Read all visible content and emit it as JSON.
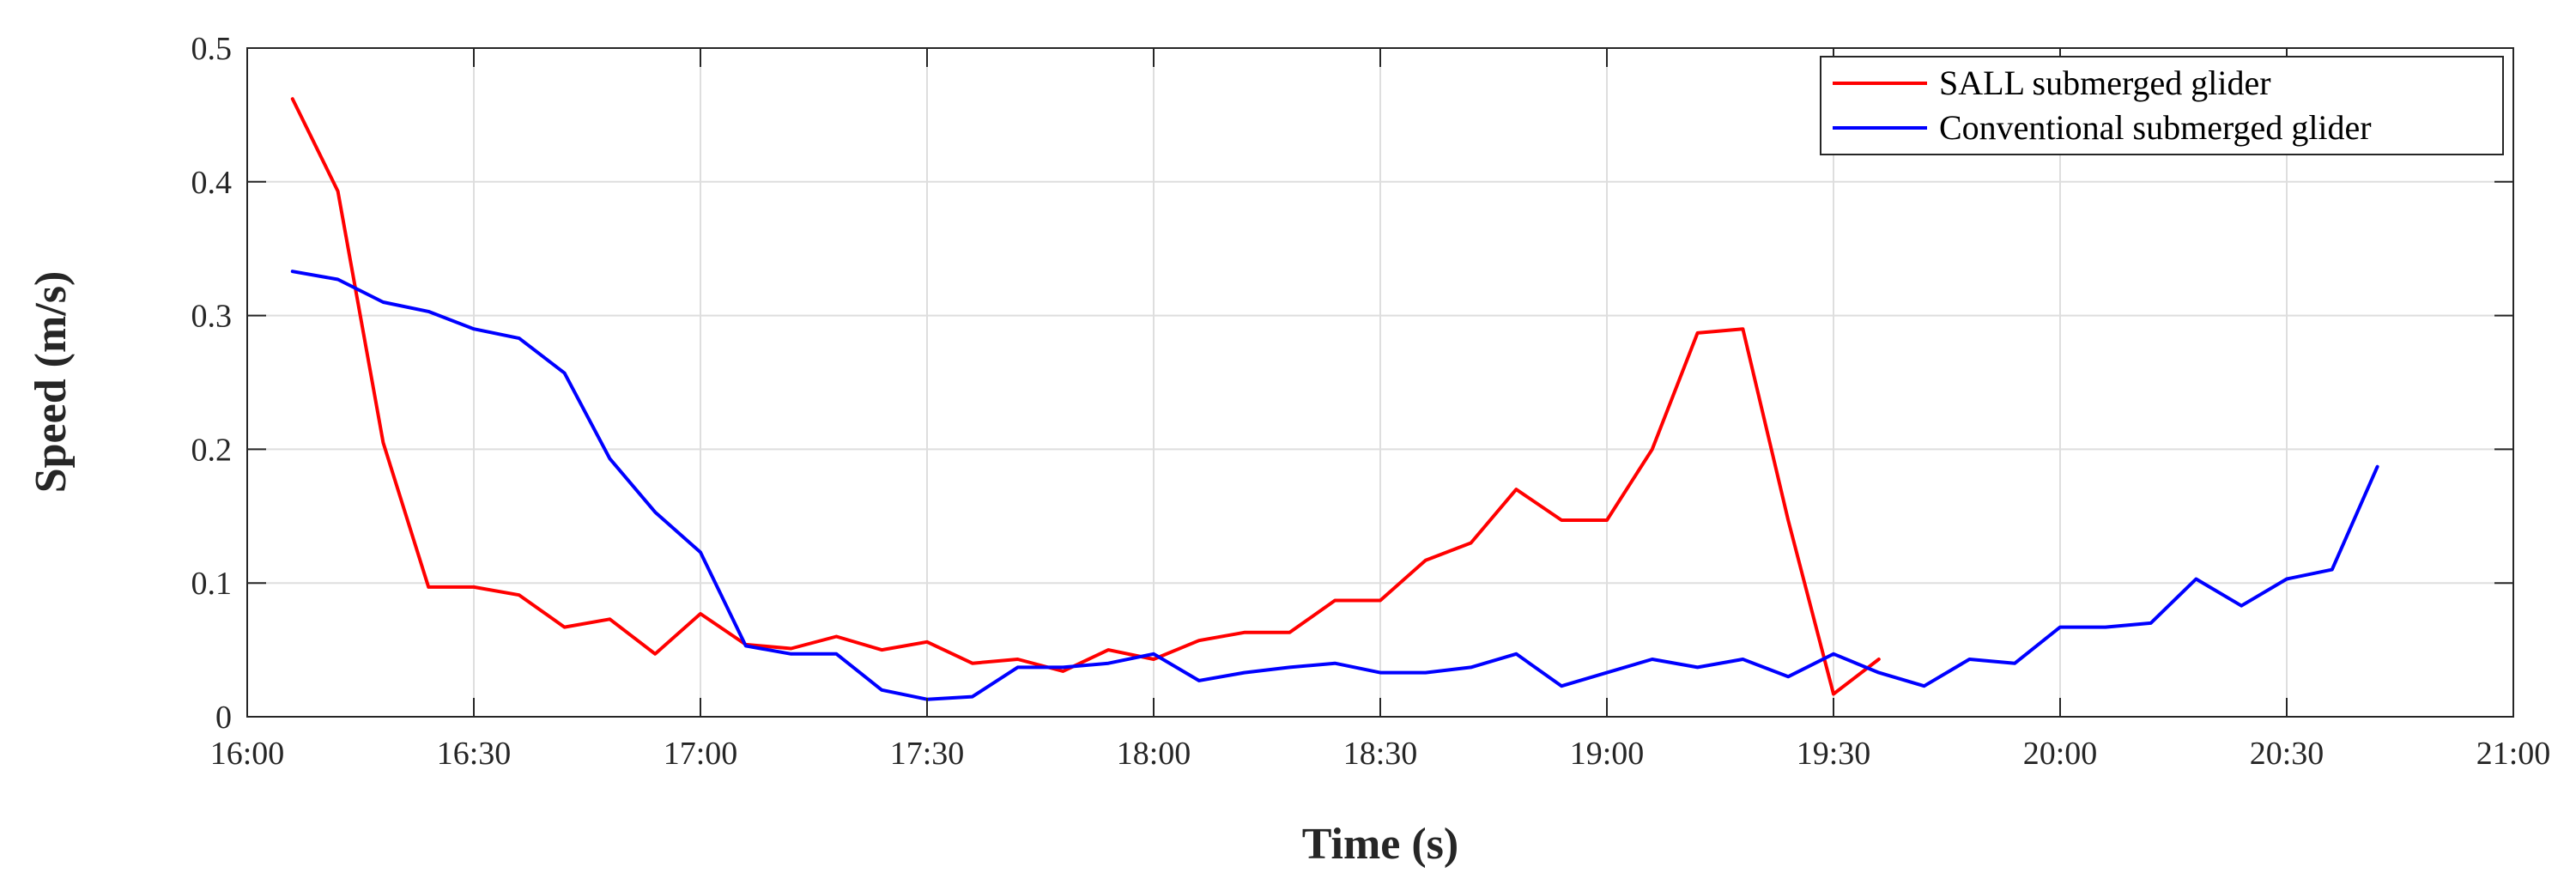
{
  "chart_data": {
    "type": "line",
    "title": "",
    "xlabel": "Time (s)",
    "ylabel": "Speed (m/s)",
    "xlim": [
      "16:00",
      "21:00"
    ],
    "ylim": [
      0,
      0.5
    ],
    "x_ticks": [
      "16:00",
      "16:30",
      "17:00",
      "17:30",
      "18:00",
      "18:30",
      "19:00",
      "19:30",
      "20:00",
      "20:30",
      "21:00"
    ],
    "y_ticks": [
      "0",
      "0.1",
      "0.2",
      "0.3",
      "0.4",
      "0.5"
    ],
    "grid": true,
    "legend_position": "top-right",
    "series": [
      {
        "name": "SALL submerged glider",
        "color": "#ff0000",
        "points": [
          [
            "16:06",
            0.462
          ],
          [
            "16:12",
            0.393
          ],
          [
            "16:18",
            0.205
          ],
          [
            "16:24",
            0.097
          ],
          [
            "16:30",
            0.097
          ],
          [
            "16:36",
            0.091
          ],
          [
            "16:42",
            0.067
          ],
          [
            "16:48",
            0.073
          ],
          [
            "16:54",
            0.047
          ],
          [
            "17:00",
            0.077
          ],
          [
            "17:06",
            0.054
          ],
          [
            "17:12",
            0.051
          ],
          [
            "17:18",
            0.06
          ],
          [
            "17:24",
            0.05
          ],
          [
            "17:30",
            0.056
          ],
          [
            "17:36",
            0.04
          ],
          [
            "17:42",
            0.043
          ],
          [
            "17:48",
            0.034
          ],
          [
            "17:54",
            0.05
          ],
          [
            "18:00",
            0.043
          ],
          [
            "18:06",
            0.057
          ],
          [
            "18:12",
            0.063
          ],
          [
            "18:18",
            0.063
          ],
          [
            "18:24",
            0.087
          ],
          [
            "18:30",
            0.087
          ],
          [
            "18:36",
            0.117
          ],
          [
            "18:42",
            0.13
          ],
          [
            "18:48",
            0.17
          ],
          [
            "18:54",
            0.147
          ],
          [
            "19:00",
            0.147
          ],
          [
            "19:06",
            0.2
          ],
          [
            "19:12",
            0.287
          ],
          [
            "19:18",
            0.29
          ],
          [
            "19:24",
            0.147
          ],
          [
            "19:30",
            0.017
          ],
          [
            "19:36",
            0.043
          ]
        ]
      },
      {
        "name": "Conventional submerged glider",
        "color": "#0000ff",
        "points": [
          [
            "16:06",
            0.333
          ],
          [
            "16:12",
            0.327
          ],
          [
            "16:18",
            0.31
          ],
          [
            "16:24",
            0.303
          ],
          [
            "16:30",
            0.29
          ],
          [
            "16:36",
            0.283
          ],
          [
            "16:42",
            0.257
          ],
          [
            "16:48",
            0.193
          ],
          [
            "16:54",
            0.153
          ],
          [
            "17:00",
            0.123
          ],
          [
            "17:06",
            0.053
          ],
          [
            "17:12",
            0.047
          ],
          [
            "17:18",
            0.047
          ],
          [
            "17:24",
            0.02
          ],
          [
            "17:30",
            0.013
          ],
          [
            "17:36",
            0.015
          ],
          [
            "17:42",
            0.037
          ],
          [
            "17:48",
            0.037
          ],
          [
            "17:54",
            0.04
          ],
          [
            "18:00",
            0.047
          ],
          [
            "18:06",
            0.027
          ],
          [
            "18:12",
            0.033
          ],
          [
            "18:18",
            0.037
          ],
          [
            "18:24",
            0.04
          ],
          [
            "18:30",
            0.033
          ],
          [
            "18:36",
            0.033
          ],
          [
            "18:42",
            0.037
          ],
          [
            "18:48",
            0.047
          ],
          [
            "18:54",
            0.023
          ],
          [
            "19:00",
            0.033
          ],
          [
            "19:06",
            0.043
          ],
          [
            "19:12",
            0.037
          ],
          [
            "19:18",
            0.043
          ],
          [
            "19:24",
            0.03
          ],
          [
            "19:30",
            0.047
          ],
          [
            "19:36",
            0.033
          ],
          [
            "19:42",
            0.023
          ],
          [
            "19:48",
            0.043
          ],
          [
            "19:54",
            0.04
          ],
          [
            "20:00",
            0.067
          ],
          [
            "20:06",
            0.067
          ],
          [
            "20:12",
            0.07
          ],
          [
            "20:18",
            0.103
          ],
          [
            "20:24",
            0.083
          ],
          [
            "20:30",
            0.103
          ],
          [
            "20:36",
            0.11
          ],
          [
            "20:42",
            0.187
          ]
        ]
      }
    ]
  }
}
